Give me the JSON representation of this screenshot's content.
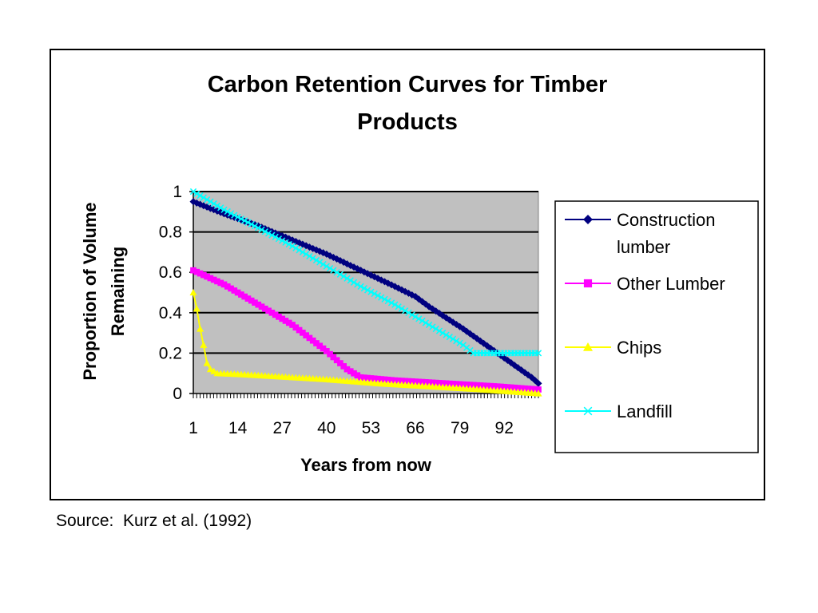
{
  "source_note": "Source:  Kurz et al. (1992)",
  "chart_data": {
    "type": "line",
    "title_lines": [
      "Carbon Retention Curves for Timber",
      "Products"
    ],
    "xlabel": "Years from now",
    "ylabel_lines": [
      "Proportion of Volume",
      "Remaining"
    ],
    "x_tick_labels": [
      "1",
      "14",
      "27",
      "40",
      "53",
      "66",
      "79",
      "92"
    ],
    "y_tick_labels": [
      "0",
      "0.2",
      "0.4",
      "0.6",
      "0.8",
      "1"
    ],
    "ylim": [
      0,
      1
    ],
    "xlim": [
      1,
      102
    ],
    "x_categories": {
      "start": 1,
      "end": 102,
      "step": 1
    },
    "grid": "horizontal",
    "plot_background": "#c0c0c0",
    "legend_position": "right",
    "series": [
      {
        "name": "Construction lumber",
        "legend_lines": [
          "Construction",
          "lumber"
        ],
        "color": "#000080",
        "marker": "diamond",
        "points": [
          [
            1,
            0.95
          ],
          [
            10,
            0.89
          ],
          [
            20,
            0.83
          ],
          [
            30,
            0.76
          ],
          [
            40,
            0.69
          ],
          [
            50,
            0.61
          ],
          [
            60,
            0.53
          ],
          [
            66,
            0.48
          ],
          [
            70,
            0.43
          ],
          [
            80,
            0.32
          ],
          [
            90,
            0.2
          ],
          [
            100,
            0.08
          ],
          [
            102,
            0.05
          ]
        ]
      },
      {
        "name": "Other Lumber",
        "legend_lines": [
          "Other Lumber"
        ],
        "color": "#ff00ff",
        "marker": "square",
        "points": [
          [
            1,
            0.61
          ],
          [
            10,
            0.54
          ],
          [
            20,
            0.44
          ],
          [
            30,
            0.34
          ],
          [
            40,
            0.21
          ],
          [
            46,
            0.12
          ],
          [
            50,
            0.08
          ],
          [
            60,
            0.065
          ],
          [
            70,
            0.055
          ],
          [
            80,
            0.045
          ],
          [
            90,
            0.035
          ],
          [
            102,
            0.02
          ]
        ]
      },
      {
        "name": "Chips",
        "legend_lines": [
          "Chips"
        ],
        "color": "#ffff00",
        "marker": "triangle",
        "points": [
          [
            1,
            0.5
          ],
          [
            2,
            0.42
          ],
          [
            3,
            0.32
          ],
          [
            4,
            0.24
          ],
          [
            5,
            0.15
          ],
          [
            6,
            0.12
          ],
          [
            8,
            0.1
          ],
          [
            15,
            0.095
          ],
          [
            25,
            0.085
          ],
          [
            40,
            0.07
          ],
          [
            55,
            0.05
          ],
          [
            70,
            0.035
          ],
          [
            85,
            0.02
          ],
          [
            102,
            0.0
          ]
        ]
      },
      {
        "name": "Landfill",
        "legend_lines": [
          "Landfill"
        ],
        "color": "#00ffff",
        "marker": "x",
        "points": [
          [
            1,
            1.0
          ],
          [
            10,
            0.91
          ],
          [
            20,
            0.82
          ],
          [
            30,
            0.73
          ],
          [
            40,
            0.63
          ],
          [
            50,
            0.53
          ],
          [
            60,
            0.44
          ],
          [
            70,
            0.34
          ],
          [
            80,
            0.24
          ],
          [
            83,
            0.2
          ],
          [
            90,
            0.2
          ],
          [
            102,
            0.2
          ]
        ]
      }
    ]
  }
}
